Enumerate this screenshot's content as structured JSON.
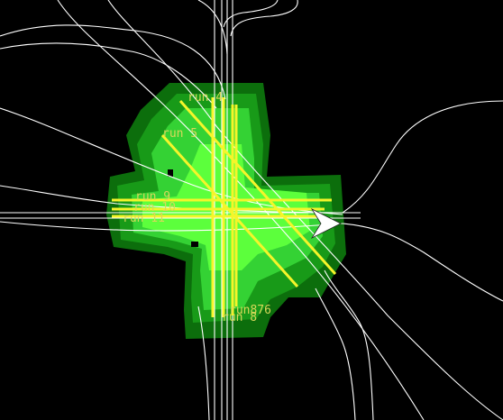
{
  "viewport": {
    "background": "#000000",
    "track_color": "#ffffff",
    "run_line_color": "#f5f52a",
    "label_color": "#d8d85a",
    "coverage_colors": {
      "outer": "#0c6e0c",
      "mid": "#189a18",
      "inner": "#34d234",
      "core": "#5cff3c"
    },
    "vehicle_color": "#ffffff",
    "vehicle_icon": "arrow-right-icon"
  },
  "runs": [
    {
      "id": "run-4",
      "label": "run 4"
    },
    {
      "id": "run-5",
      "label": "run 5"
    },
    {
      "id": "run-9",
      "label": "run 9"
    },
    {
      "id": "run-10",
      "label": "run 10"
    },
    {
      "id": "run-11",
      "label": "run 11"
    },
    {
      "id": "run-876-overlap",
      "label": "run876"
    },
    {
      "id": "run-8",
      "label": "run 8"
    }
  ]
}
